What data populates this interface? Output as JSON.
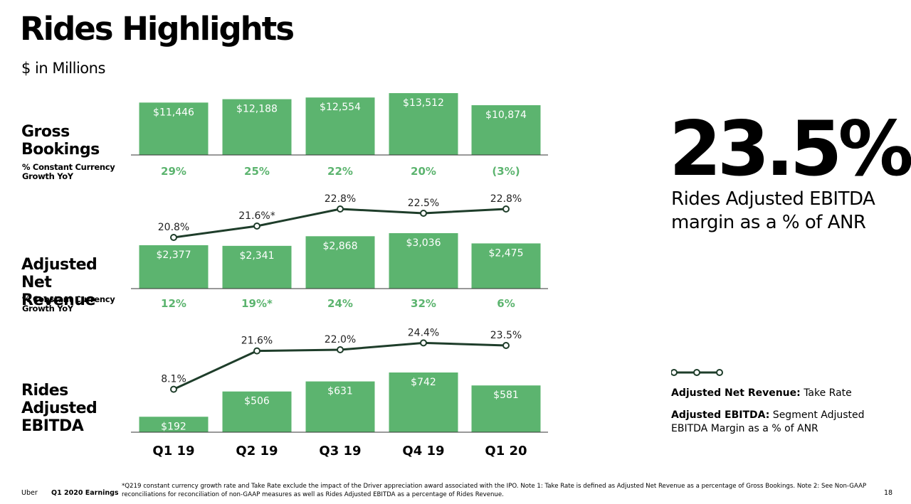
{
  "title": "Rides Highlights",
  "subtitle": "$ in Millions",
  "colors": {
    "bar": "#5cb46f",
    "growth_text": "#5cb46f",
    "line": "#1e3d2a",
    "bar_label": "#ffffff"
  },
  "sections": {
    "gross_bookings": {
      "label": "Gross Bookings",
      "note": "% Constant Currency Growth YoY"
    },
    "anr": {
      "label": "Adjusted Net Revenue",
      "note": "% Constant Currency Growth YoY"
    },
    "ebitda": {
      "label": "Rides Adjusted EBITDA"
    }
  },
  "chart_data": [
    {
      "type": "bar",
      "name": "Gross Bookings",
      "categories": [
        "Q1 19",
        "Q2 19",
        "Q3 19",
        "Q4 19",
        "Q1 20"
      ],
      "values": [
        11446,
        12188,
        12554,
        13512,
        10874
      ],
      "value_labels": [
        "$11,446",
        "$12,188",
        "$12,554",
        "$13,512",
        "$10,874"
      ],
      "growth_labels": [
        "29%",
        "25%",
        "22%",
        "20%",
        "(3%)"
      ],
      "ylim": [
        0,
        13512
      ]
    },
    {
      "type": "bar+line",
      "name": "Adjusted Net Revenue",
      "categories": [
        "Q1 19",
        "Q2 19",
        "Q3 19",
        "Q4 19",
        "Q1 20"
      ],
      "values": [
        2377,
        2341,
        2868,
        3036,
        2475
      ],
      "value_labels": [
        "$2,377",
        "$2,341",
        "$2,868",
        "$3,036",
        "$2,475"
      ],
      "line_values": [
        20.8,
        21.6,
        22.8,
        22.5,
        22.8
      ],
      "line_labels": [
        "20.8%",
        "21.6%*",
        "22.8%",
        "22.5%",
        "22.8%"
      ],
      "line_ylim": [
        18,
        25
      ],
      "growth_labels": [
        "12%",
        "19%*",
        "24%",
        "32%",
        "6%"
      ],
      "ylim": [
        0,
        3036
      ]
    },
    {
      "type": "bar+line",
      "name": "Rides Adjusted EBITDA",
      "categories": [
        "Q1 19",
        "Q2 19",
        "Q3 19",
        "Q4 19",
        "Q1 20"
      ],
      "values": [
        192,
        506,
        631,
        742,
        581
      ],
      "value_labels": [
        "$192",
        "$506",
        "$631",
        "$742",
        "$581"
      ],
      "line_values": [
        8.1,
        21.6,
        22.0,
        24.4,
        23.5
      ],
      "line_labels": [
        "8.1%",
        "21.6%",
        "22.0%",
        "24.4%",
        "23.5%"
      ],
      "line_ylim": [
        0,
        25
      ],
      "ylim": [
        0,
        742
      ],
      "x_tick_labels": [
        "Q1 19",
        "Q2 19",
        "Q3 19",
        "Q4 19",
        "Q1 20"
      ]
    }
  ],
  "highlight": {
    "value": "23.5%",
    "caption": "Rides Adjusted  EBITDA margin as a % of ANR"
  },
  "legend": {
    "line_icon": "line-with-dots-icon",
    "item1_bold": "Adjusted Net Revenue:",
    "item1_text": " Take Rate",
    "item2_bold": "Adjusted EBITDA:",
    "item2_text": " Segment Adjusted EBITDA Margin as a % of ANR"
  },
  "footer": {
    "brand": "Uber",
    "deck": "Q1 2020 Earnings",
    "footnote": "*Q219 constant currency growth rate and Take Rate exclude the impact of the Driver appreciation award associated with the IPO. Note 1: Take Rate is defined as Adjusted Net Revenue as a percentage of Gross Bookings. Note 2: See Non-GAAP reconciliations for reconciliation of non-GAAP measures as well as Rides Adjusted EBITDA as a percentage of Rides Revenue.",
    "page": "18"
  }
}
